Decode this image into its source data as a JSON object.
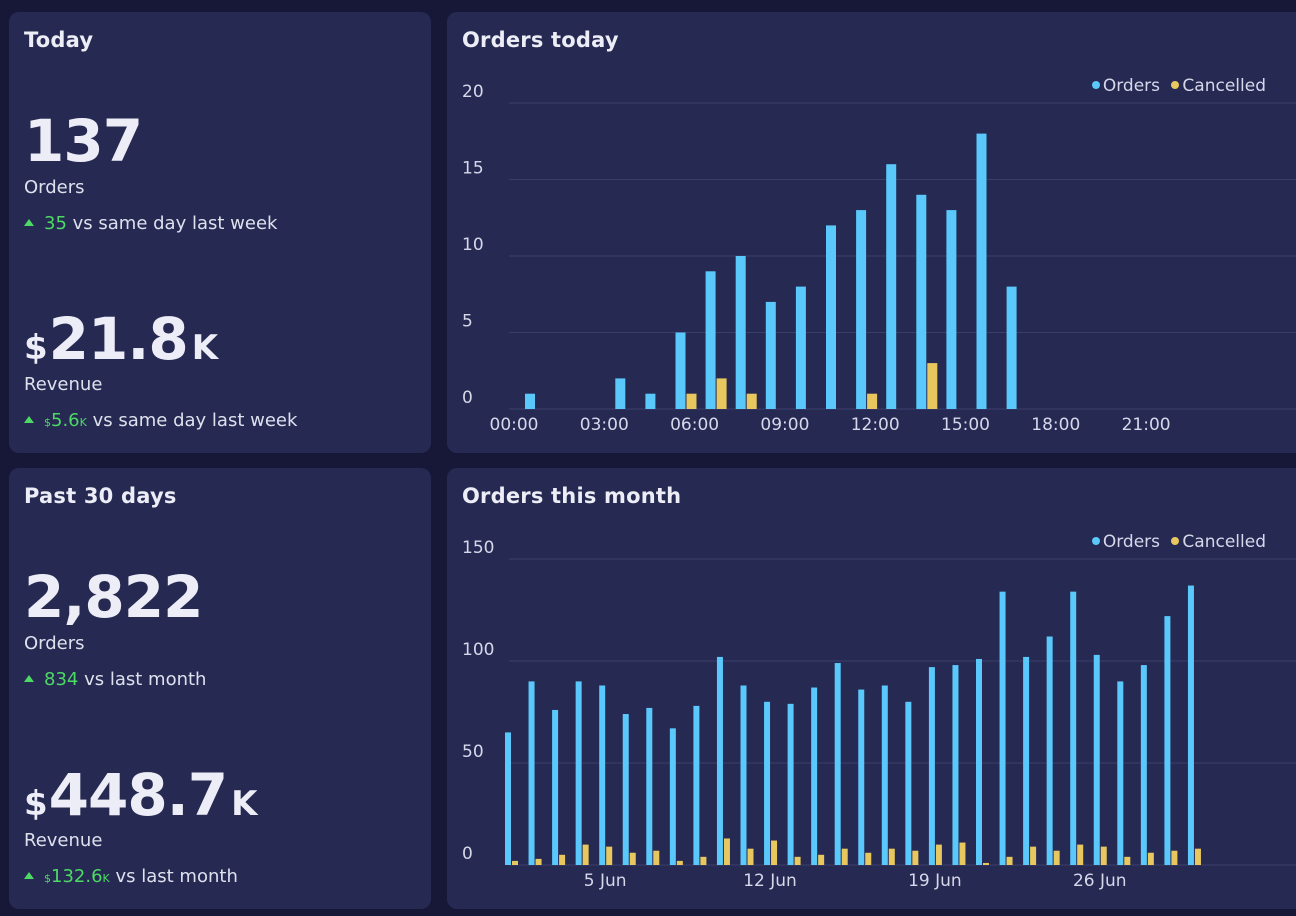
{
  "today": {
    "title": "Today",
    "orders_value": "137",
    "orders_label": "Orders",
    "orders_delta": "35",
    "orders_delta_text": "vs same day last week",
    "revenue_currency": "$",
    "revenue_value": "21.8",
    "revenue_suffix": "K",
    "revenue_label": "Revenue",
    "revenue_delta_currency": "$",
    "revenue_delta": "5.6",
    "revenue_delta_suffix": "K",
    "revenue_delta_text": "vs same day last week"
  },
  "month": {
    "title": "Past 30 days",
    "orders_value": "2,822",
    "orders_label": "Orders",
    "orders_delta": "834",
    "orders_delta_text": "vs last month",
    "revenue_currency": "$",
    "revenue_value": "448.7",
    "revenue_suffix": "K",
    "revenue_label": "Revenue",
    "revenue_delta_currency": "$",
    "revenue_delta": "132.6",
    "revenue_delta_suffix": "K",
    "revenue_delta_text": "vs last month"
  },
  "colors": {
    "orders": "#5ac8fa",
    "cancelled": "#e8c85e",
    "positive": "#4cd964"
  },
  "chart_data": [
    {
      "type": "bar",
      "title": "Orders today",
      "x_ticks": [
        "00:00",
        "03:00",
        "06:00",
        "09:00",
        "12:00",
        "15:00",
        "18:00",
        "21:00"
      ],
      "y_ticks": [
        0,
        5,
        10,
        15,
        20
      ],
      "ylim": [
        0,
        20
      ],
      "legend": [
        "Orders",
        "Cancelled"
      ],
      "legend_position": "top-right",
      "hours": [
        0,
        1,
        2,
        3,
        4,
        5,
        6,
        7,
        8,
        9,
        10,
        11,
        12,
        13,
        14,
        15,
        16,
        17,
        18,
        19,
        20,
        21,
        22,
        23
      ],
      "series": [
        {
          "name": "Orders",
          "values": [
            1,
            0,
            0,
            2,
            1,
            5,
            9,
            10,
            7,
            8,
            12,
            13,
            16,
            14,
            13,
            18,
            8,
            0,
            0,
            0,
            0,
            0,
            0,
            0
          ]
        },
        {
          "name": "Cancelled",
          "values": [
            0,
            0,
            0,
            0,
            0,
            1,
            2,
            1,
            0,
            0,
            0,
            1,
            0,
            3,
            0,
            0,
            0,
            0,
            0,
            0,
            0,
            0,
            0,
            0
          ]
        }
      ]
    },
    {
      "type": "bar",
      "title": "Orders this month",
      "x_ticks": [
        "5 Jun",
        "12 Jun",
        "19 Jun",
        "26 Jun"
      ],
      "x_tick_days": [
        5,
        12,
        19,
        26
      ],
      "y_ticks": [
        0,
        50,
        100,
        150
      ],
      "ylim": [
        0,
        150
      ],
      "legend": [
        "Orders",
        "Cancelled"
      ],
      "legend_position": "top-right",
      "days": [
        1,
        2,
        3,
        4,
        5,
        6,
        7,
        8,
        9,
        10,
        11,
        12,
        13,
        14,
        15,
        16,
        17,
        18,
        19,
        20,
        21,
        22,
        23,
        24,
        25,
        26,
        27,
        28,
        29,
        30
      ],
      "series": [
        {
          "name": "Orders",
          "values": [
            65,
            90,
            76,
            90,
            88,
            74,
            77,
            67,
            78,
            102,
            88,
            80,
            79,
            87,
            99,
            86,
            88,
            80,
            97,
            98,
            101,
            134,
            102,
            112,
            134,
            103,
            90,
            98,
            122,
            137
          ]
        },
        {
          "name": "Cancelled",
          "values": [
            2,
            3,
            5,
            10,
            9,
            6,
            7,
            2,
            4,
            13,
            8,
            12,
            4,
            5,
            8,
            6,
            8,
            7,
            10,
            11,
            1,
            4,
            9,
            7,
            10,
            9,
            4,
            6,
            7,
            8
          ]
        }
      ]
    }
  ]
}
